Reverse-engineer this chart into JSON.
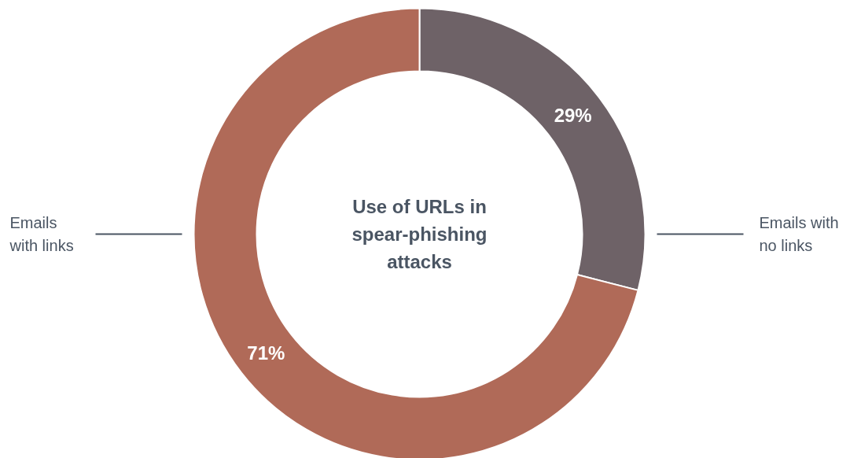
{
  "chart_data": {
    "type": "donut",
    "title": "Use of URLs in spear-phishing attacks",
    "categories": [
      "Emails with no links",
      "Emails with links"
    ],
    "values": [
      29,
      71
    ],
    "colors": [
      "#6e6267",
      "#b06a58"
    ],
    "value_labels": [
      "29%",
      "71%"
    ]
  }
}
